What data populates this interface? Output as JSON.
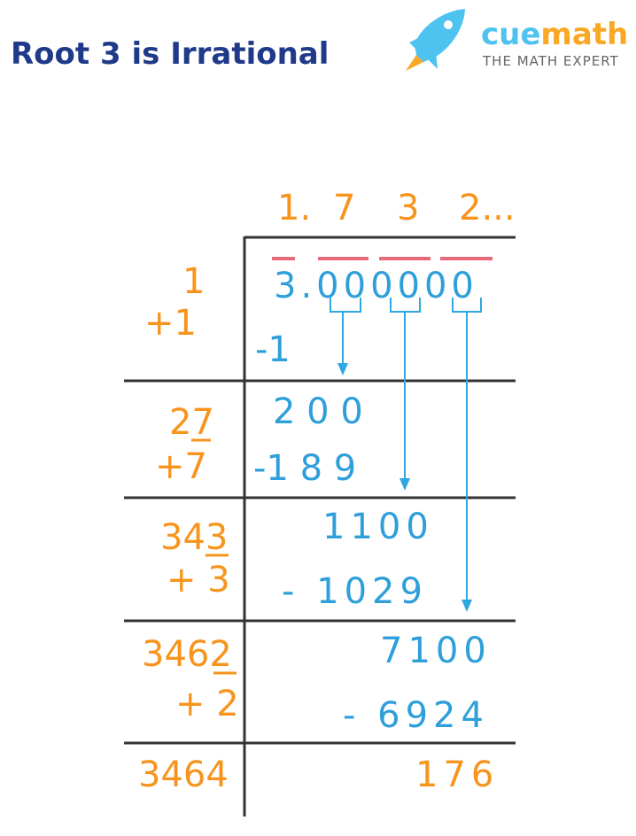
{
  "title": "Root 3 is Irrational",
  "logo": {
    "brand_a": "cue",
    "brand_b": "math",
    "tagline": "THE MATH EXPERT",
    "icon": "rocket-icon",
    "colors": {
      "blue": "#4ec3f0",
      "orange": "#f9a825"
    }
  },
  "colors": {
    "divisor": "#f7941d",
    "dividend": "#2e9fda",
    "pair_bar": "#e86a7a",
    "title": "#1f3a8a"
  },
  "quotient": [
    "1.",
    "7",
    "3",
    "2..."
  ],
  "dividend": "3.000000",
  "left": {
    "r1a": "1",
    "r1b": "+1",
    "r2a": "27",
    "r2b": "+7",
    "r3a": "343",
    "r3b": "+ 3",
    "r4a": "3462",
    "r4b": "+ 2",
    "r5": "3464"
  },
  "right": {
    "s1": "-1",
    "r2": "2 0 0",
    "s2": "-1 8 9",
    "r3": "1100",
    "s3": "- 1029",
    "r4": "7100",
    "s4": "- 6924",
    "rem": "176"
  }
}
